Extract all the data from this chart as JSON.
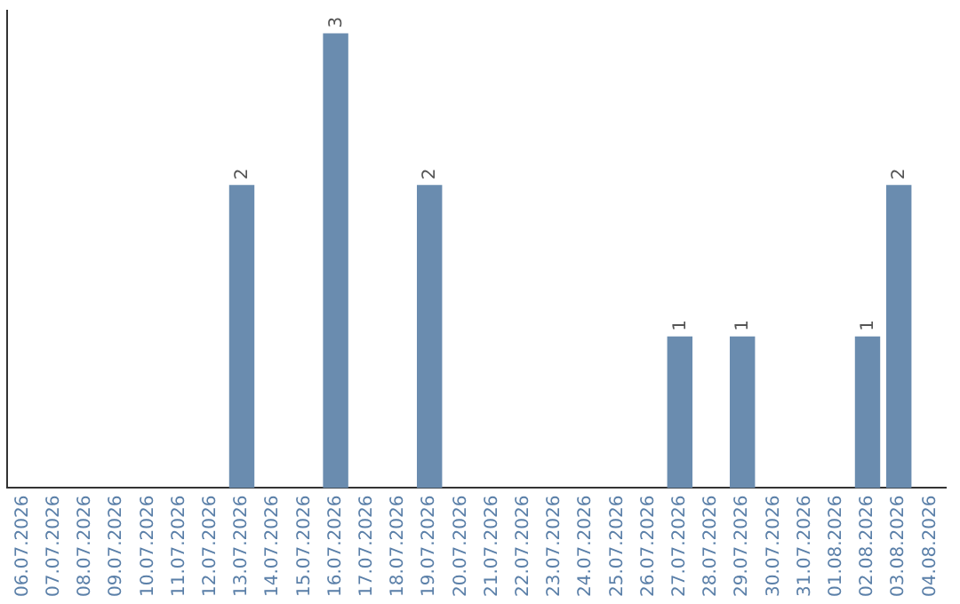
{
  "chart_data": {
    "type": "bar",
    "categories": [
      "06.07.2026",
      "07.07.2026",
      "08.07.2026",
      "09.07.2026",
      "10.07.2026",
      "11.07.2026",
      "12.07.2026",
      "13.07.2026",
      "14.07.2026",
      "15.07.2026",
      "16.07.2026",
      "17.07.2026",
      "18.07.2026",
      "19.07.2026",
      "20.07.2026",
      "21.07.2026",
      "22.07.2026",
      "23.07.2026",
      "24.07.2026",
      "25.07.2026",
      "26.07.2026",
      "27.07.2026",
      "28.07.2026",
      "29.07.2026",
      "30.07.2026",
      "31.07.2026",
      "01.08.2026",
      "02.08.2026",
      "03.08.2026",
      "04.08.2026"
    ],
    "values": [
      0,
      0,
      0,
      0,
      0,
      0,
      0,
      2,
      0,
      0,
      3,
      0,
      0,
      2,
      0,
      0,
      0,
      0,
      0,
      0,
      0,
      1,
      0,
      1,
      0,
      0,
      0,
      1,
      2,
      0
    ],
    "value_labels": [
      null,
      null,
      null,
      null,
      null,
      null,
      null,
      "2",
      null,
      null,
      "3",
      null,
      null,
      "2",
      null,
      null,
      null,
      null,
      null,
      null,
      null,
      "1",
      null,
      "1",
      null,
      null,
      null,
      "1",
      "2",
      null
    ],
    "color": "#6a8caf",
    "ylim": [
      0,
      3.15
    ],
    "tick_labels": "x",
    "grid": false,
    "legend": false
  }
}
